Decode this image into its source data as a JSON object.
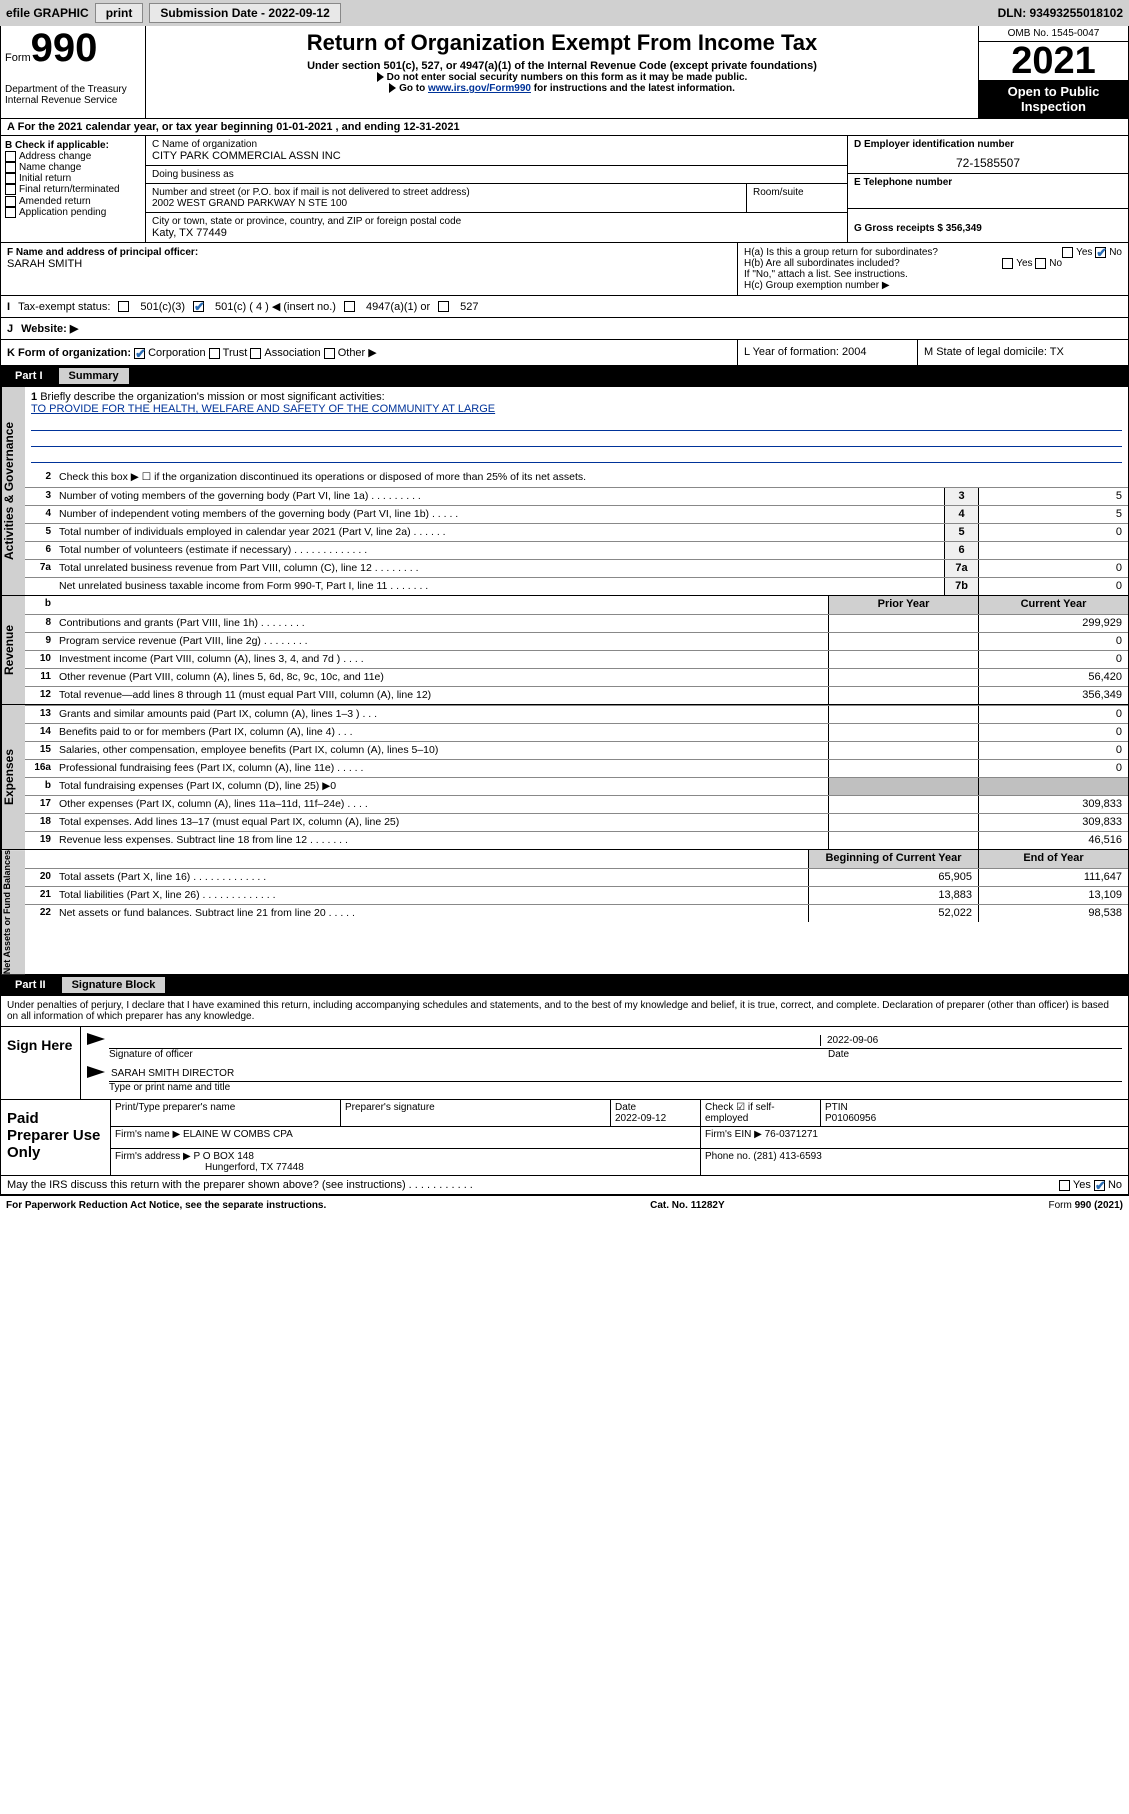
{
  "topbar": {
    "efile": "efile GRAPHIC",
    "print": "print",
    "sub_label": "Submission Date - ",
    "sub_date": "2022-09-12",
    "dln": "DLN: 93493255018102"
  },
  "header": {
    "form_word": "Form",
    "form_num": "990",
    "dept": "Department of the Treasury",
    "irs": "Internal Revenue Service",
    "title": "Return of Organization Exempt From Income Tax",
    "sub1": "Under section 501(c), 527, or 4947(a)(1) of the Internal Revenue Code (except private foundations)",
    "sub2": "Do not enter social security numbers on this form as it may be made public.",
    "sub3_pre": "Go to ",
    "sub3_link": "www.irs.gov/Form990",
    "sub3_post": " for instructions and the latest information.",
    "omb": "OMB No. 1545-0047",
    "year": "2021",
    "open": "Open to Public Inspection"
  },
  "row_a": "For the 2021 calendar year, or tax year beginning 01-01-2021   , and ending 12-31-2021",
  "col_b": {
    "title": "B Check if applicable:",
    "items": [
      "Address change",
      "Name change",
      "Initial return",
      "Final return/terminated",
      "Amended return",
      "Application pending"
    ]
  },
  "col_c": {
    "name_lbl": "C Name of organization",
    "name": "CITY PARK COMMERCIAL ASSN INC",
    "dba_lbl": "Doing business as",
    "dba": "",
    "addr_lbl": "Number and street (or P.O. box if mail is not delivered to street address)",
    "addr": "2002 WEST GRAND PARKWAY N STE 100",
    "room_lbl": "Room/suite",
    "city_lbl": "City or town, state or province, country, and ZIP or foreign postal code",
    "city": "Katy, TX  77449"
  },
  "col_d": {
    "ein_lbl": "D Employer identification number",
    "ein": "72-1585507",
    "tel_lbl": "E Telephone number",
    "tel": "",
    "gross_lbl": "G Gross receipts $ ",
    "gross": "356,349"
  },
  "row_f": {
    "lbl": "F Name and address of principal officer:",
    "val": "SARAH SMITH"
  },
  "row_h": {
    "ha": "H(a)  Is this a group return for subordinates?",
    "hb": "H(b)  Are all subordinates included?",
    "hb2": "If \"No,\" attach a list. See instructions.",
    "hc": "H(c)  Group exemption number ▶",
    "yes": "Yes",
    "no": "No"
  },
  "row_i": {
    "lbl": "Tax-exempt status:",
    "o1": "501(c)(3)",
    "o2": "501(c) ( 4 ) ◀ (insert no.)",
    "o3": "4947(a)(1) or",
    "o4": "527"
  },
  "row_j": {
    "lbl": "Website: ▶"
  },
  "row_k": {
    "lbl": "K Form of organization:",
    "o1": "Corporation",
    "o2": "Trust",
    "o3": "Association",
    "o4": "Other ▶",
    "l": "L Year of formation: 2004",
    "m": "M State of legal domicile: TX"
  },
  "part1": {
    "num": "Part I",
    "title": "Summary"
  },
  "gov": {
    "side": "Activities & Governance",
    "l1_lbl": "Briefly describe the organization's mission or most significant activities:",
    "l1_val": "TO PROVIDE FOR THE HEALTH, WELFARE AND SAFETY OF THE COMMUNITY AT LARGE",
    "l2": "Check this box ▶ ☐  if the organization discontinued its operations or disposed of more than 25% of its net assets.",
    "lines": [
      {
        "n": "3",
        "d": "Number of voting members of the governing body (Part VI, line 1a)   .    .    .    .    .    .    .    .    .",
        "b": "3",
        "v": "5"
      },
      {
        "n": "4",
        "d": "Number of independent voting members of the governing body (Part VI, line 1b)   .    .    .    .    .",
        "b": "4",
        "v": "5"
      },
      {
        "n": "5",
        "d": "Total number of individuals employed in calendar year 2021 (Part V, line 2a)   .    .    .    .    .    .",
        "b": "5",
        "v": "0"
      },
      {
        "n": "6",
        "d": "Total number of volunteers (estimate if necessary)   .    .    .    .    .    .    .    .    .    .    .    .    .",
        "b": "6",
        "v": ""
      },
      {
        "n": "7a",
        "d": "Total unrelated business revenue from Part VIII, column (C), line 12   .    .    .    .    .    .    .    .",
        "b": "7a",
        "v": "0"
      },
      {
        "n": "",
        "d": "Net unrelated business taxable income from Form 990-T, Part I, line 11   .    .    .    .    .    .    .",
        "b": "7b",
        "v": "0"
      }
    ]
  },
  "rev": {
    "side": "Revenue",
    "hdr_b": "b",
    "hdr_py": "Prior Year",
    "hdr_cy": "Current Year",
    "lines": [
      {
        "n": "8",
        "d": "Contributions and grants (Part VIII, line 1h)   .    .    .    .    .    .    .    .",
        "py": "",
        "cy": "299,929"
      },
      {
        "n": "9",
        "d": "Program service revenue (Part VIII, line 2g)   .    .    .    .    .    .    .    .",
        "py": "",
        "cy": "0"
      },
      {
        "n": "10",
        "d": "Investment income (Part VIII, column (A), lines 3, 4, and 7d )   .    .    .    .",
        "py": "",
        "cy": "0"
      },
      {
        "n": "11",
        "d": "Other revenue (Part VIII, column (A), lines 5, 6d, 8c, 9c, 10c, and 11e)",
        "py": "",
        "cy": "56,420"
      },
      {
        "n": "12",
        "d": "Total revenue—add lines 8 through 11 (must equal Part VIII, column (A), line 12)",
        "py": "",
        "cy": "356,349"
      }
    ]
  },
  "exp": {
    "side": "Expenses",
    "lines": [
      {
        "n": "13",
        "d": "Grants and similar amounts paid (Part IX, column (A), lines 1–3 )   .    .    .",
        "py": "",
        "cy": "0"
      },
      {
        "n": "14",
        "d": "Benefits paid to or for members (Part IX, column (A), line 4)   .    .    .",
        "py": "",
        "cy": "0"
      },
      {
        "n": "15",
        "d": "Salaries, other compensation, employee benefits (Part IX, column (A), lines 5–10)",
        "py": "",
        "cy": "0"
      },
      {
        "n": "16a",
        "d": "Professional fundraising fees (Part IX, column (A), line 11e)   .    .    .    .    .",
        "py": "",
        "cy": "0"
      },
      {
        "n": "b",
        "d": "Total fundraising expenses (Part IX, column (D), line 25) ▶0",
        "py": "gr",
        "cy": "gr"
      },
      {
        "n": "17",
        "d": "Other expenses (Part IX, column (A), lines 11a–11d, 11f–24e)   .    .    .    .",
        "py": "",
        "cy": "309,833"
      },
      {
        "n": "18",
        "d": "Total expenses. Add lines 13–17 (must equal Part IX, column (A), line 25)",
        "py": "",
        "cy": "309,833"
      },
      {
        "n": "19",
        "d": "Revenue less expenses. Subtract line 18 from line 12   .    .    .    .    .    .    .",
        "py": "",
        "cy": "46,516"
      }
    ]
  },
  "net": {
    "side": "Net Assets or Fund Balances",
    "hdr_py": "Beginning of Current Year",
    "hdr_cy": "End of Year",
    "lines": [
      {
        "n": "20",
        "d": "Total assets (Part X, line 16)   .    .    .    .    .    .    .    .    .    .    .    .    .",
        "py": "65,905",
        "cy": "111,647"
      },
      {
        "n": "21",
        "d": "Total liabilities (Part X, line 26)   .    .    .    .    .    .    .    .    .    .    .    .    .",
        "py": "13,883",
        "cy": "13,109"
      },
      {
        "n": "22",
        "d": "Net assets or fund balances. Subtract line 21 from line 20   .    .    .    .    .",
        "py": "52,022",
        "cy": "98,538"
      }
    ]
  },
  "part2": {
    "num": "Part II",
    "title": "Signature Block"
  },
  "sig_intro": "Under penalties of perjury, I declare that I have examined this return, including accompanying schedules and statements, and to the best of my knowledge and belief, it is true, correct, and complete. Declaration of preparer (other than officer) is based on all information of which preparer has any knowledge.",
  "sign": {
    "lbl": "Sign Here",
    "sig_lbl": "Signature of officer",
    "date_lbl": "Date",
    "date": "2022-09-06",
    "name": "SARAH SMITH  DIRECTOR",
    "name_lbl": "Type or print name and title"
  },
  "paid": {
    "lbl": "Paid Preparer Use Only",
    "h1": "Print/Type preparer's name",
    "h2": "Preparer's signature",
    "h3": "Date",
    "h3v": "2022-09-12",
    "h4": "Check ☑ if self-employed",
    "h5": "PTIN",
    "h5v": "P01060956",
    "firm_lbl": "Firm's name    ▶",
    "firm": "ELAINE W COMBS CPA",
    "ein_lbl": "Firm's EIN ▶",
    "ein": "76-0371271",
    "addr_lbl": "Firm's address ▶",
    "addr1": "P O BOX 148",
    "addr2": "Hungerford, TX  77448",
    "phone_lbl": "Phone no.",
    "phone": "(281) 413-6593"
  },
  "may": {
    "q": "May the IRS discuss this return with the preparer shown above? (see instructions)   .    .    .    .    .    .    .    .    .    .    .",
    "yes": "Yes",
    "no": "No"
  },
  "footer": {
    "l": "For Paperwork Reduction Act Notice, see the separate instructions.",
    "m": "Cat. No. 11282Y",
    "r": "Form 990 (2021)"
  }
}
